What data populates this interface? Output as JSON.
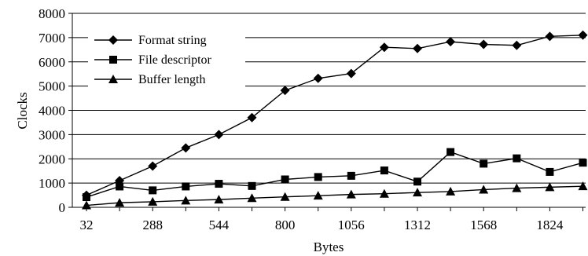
{
  "chart_data": {
    "type": "line",
    "title": "",
    "xlabel": "Bytes",
    "ylabel": "Clocks",
    "ylim": [
      0,
      8000
    ],
    "yticks": [
      0,
      1000,
      2000,
      3000,
      4000,
      5000,
      6000,
      7000,
      8000
    ],
    "categories": [
      "32",
      "160",
      "288",
      "416",
      "544",
      "672",
      "800",
      "928",
      "1056",
      "1184",
      "1312",
      "1440",
      "1568",
      "1696",
      "1824",
      "1952"
    ],
    "xtick_labels": [
      "32",
      "288",
      "544",
      "800",
      "1056",
      "1312",
      "1568",
      "1824"
    ],
    "grid": "horizontal",
    "legend_position": "top-left",
    "series": [
      {
        "name": "Format string",
        "marker": "diamond",
        "values": [
          500,
          1100,
          1700,
          2450,
          3000,
          3700,
          4820,
          5320,
          5520,
          6600,
          6550,
          6830,
          6720,
          6680,
          7050,
          7100
        ]
      },
      {
        "name": "File descriptor",
        "marker": "square",
        "values": [
          420,
          860,
          700,
          860,
          970,
          880,
          1150,
          1250,
          1300,
          1520,
          1060,
          2280,
          1800,
          2020,
          1460,
          1840
        ]
      },
      {
        "name": "Buffer length",
        "marker": "triangle",
        "values": [
          80,
          190,
          230,
          280,
          320,
          380,
          430,
          480,
          530,
          560,
          610,
          650,
          730,
          790,
          830,
          870
        ]
      }
    ]
  }
}
